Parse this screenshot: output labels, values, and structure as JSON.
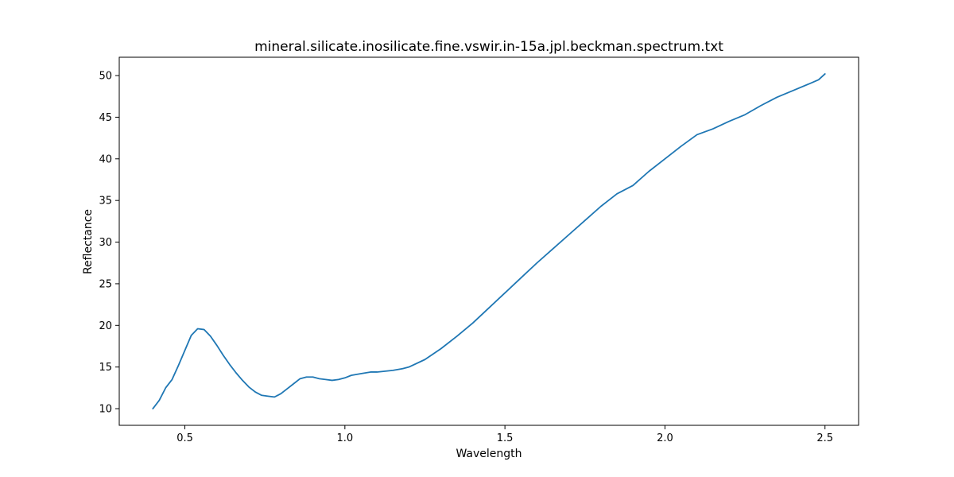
{
  "chart_data": {
    "type": "line",
    "title": "mineral.silicate.inosilicate.fine.vswir.in-15a.jpl.beckman.spectrum.txt",
    "xlabel": "Wavelength",
    "ylabel": "Reflectance",
    "xlim": [
      0.295,
      2.605
    ],
    "ylim": [
      8.0,
      52.2
    ],
    "xticks": [
      0.5,
      1.0,
      1.5,
      2.0,
      2.5
    ],
    "xtick_labels": [
      "0.5",
      "1.0",
      "1.5",
      "2.0",
      "2.5"
    ],
    "yticks": [
      10,
      15,
      20,
      25,
      30,
      35,
      40,
      45,
      50
    ],
    "ytick_labels": [
      "10",
      "15",
      "20",
      "25",
      "30",
      "35",
      "40",
      "45",
      "50"
    ],
    "grid": false,
    "legend": "none",
    "series": [
      {
        "color": "#1f77b4",
        "x": [
          0.4,
          0.42,
          0.44,
          0.46,
          0.48,
          0.5,
          0.52,
          0.54,
          0.56,
          0.58,
          0.6,
          0.62,
          0.64,
          0.66,
          0.68,
          0.7,
          0.72,
          0.74,
          0.76,
          0.78,
          0.79,
          0.8,
          0.82,
          0.84,
          0.86,
          0.88,
          0.9,
          0.92,
          0.94,
          0.96,
          0.98,
          1.0,
          1.02,
          1.05,
          1.08,
          1.1,
          1.15,
          1.18,
          1.2,
          1.25,
          1.3,
          1.35,
          1.4,
          1.45,
          1.5,
          1.55,
          1.6,
          1.65,
          1.7,
          1.75,
          1.8,
          1.85,
          1.9,
          1.95,
          2.0,
          2.05,
          2.1,
          2.15,
          2.2,
          2.25,
          2.3,
          2.35,
          2.4,
          2.45,
          2.48,
          2.5
        ],
        "y": [
          10.0,
          11.0,
          12.5,
          13.5,
          15.2,
          17.0,
          18.8,
          19.6,
          19.5,
          18.7,
          17.6,
          16.4,
          15.3,
          14.3,
          13.4,
          12.6,
          12.0,
          11.6,
          11.5,
          11.4,
          11.6,
          11.8,
          12.4,
          13.0,
          13.6,
          13.8,
          13.8,
          13.6,
          13.5,
          13.4,
          13.5,
          13.7,
          14.0,
          14.2,
          14.4,
          14.4,
          14.6,
          14.8,
          15.0,
          15.9,
          17.2,
          18.7,
          20.3,
          22.1,
          23.9,
          25.7,
          27.5,
          29.2,
          30.9,
          32.6,
          34.3,
          35.8,
          36.8,
          38.5,
          40.0,
          41.5,
          42.9,
          43.6,
          44.5,
          45.3,
          46.4,
          47.4,
          48.2,
          49.0,
          49.5,
          50.2
        ]
      }
    ]
  }
}
